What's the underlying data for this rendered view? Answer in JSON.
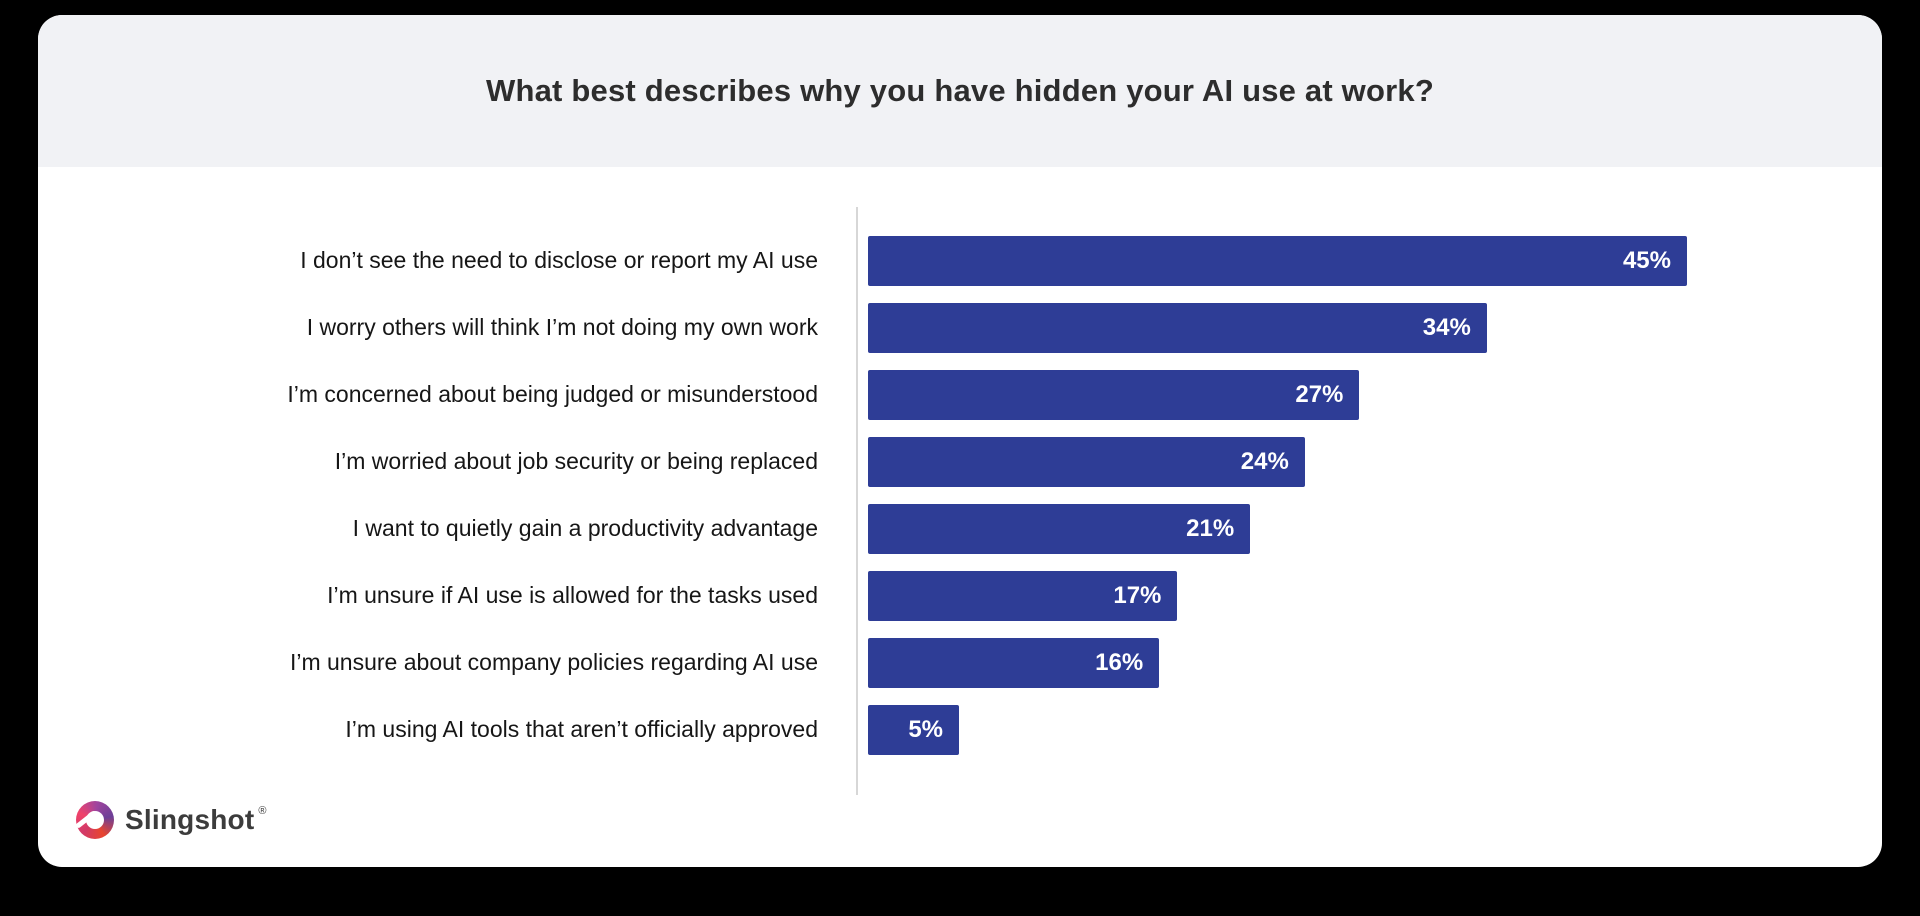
{
  "header": {
    "title": "What best describes why you have hidden your AI use at work?"
  },
  "chart_data": {
    "type": "bar",
    "orientation": "horizontal",
    "title": "What best describes why you have hidden your AI use at work?",
    "xlabel": "",
    "ylabel": "",
    "xlim": [
      0,
      45
    ],
    "grid": false,
    "legend": "none",
    "bar_color": "#2e3d96",
    "value_label_color": "#ffffff",
    "value_suffix": "%",
    "categories": [
      "I don’t see the need to disclose or report my AI use",
      "I worry others will think I’m not doing my own work",
      "I’m concerned about being judged or misunderstood",
      "I’m worried about job security or being replaced",
      "I want to quietly gain a productivity advantage",
      "I’m unsure if AI use is allowed for the tasks used",
      "I’m unsure about company policies regarding AI use",
      "I’m using AI tools that aren’t officially approved"
    ],
    "values": [
      45,
      34,
      27,
      24,
      21,
      17,
      16,
      5
    ]
  },
  "footer": {
    "brand": "Slingshot",
    "trademark": "®"
  },
  "colors": {
    "page_background": "#000000",
    "card_background": "#ffffff",
    "header_background": "#f1f2f5",
    "divider": "#d7d7d7",
    "bar": "#2e3d96"
  }
}
